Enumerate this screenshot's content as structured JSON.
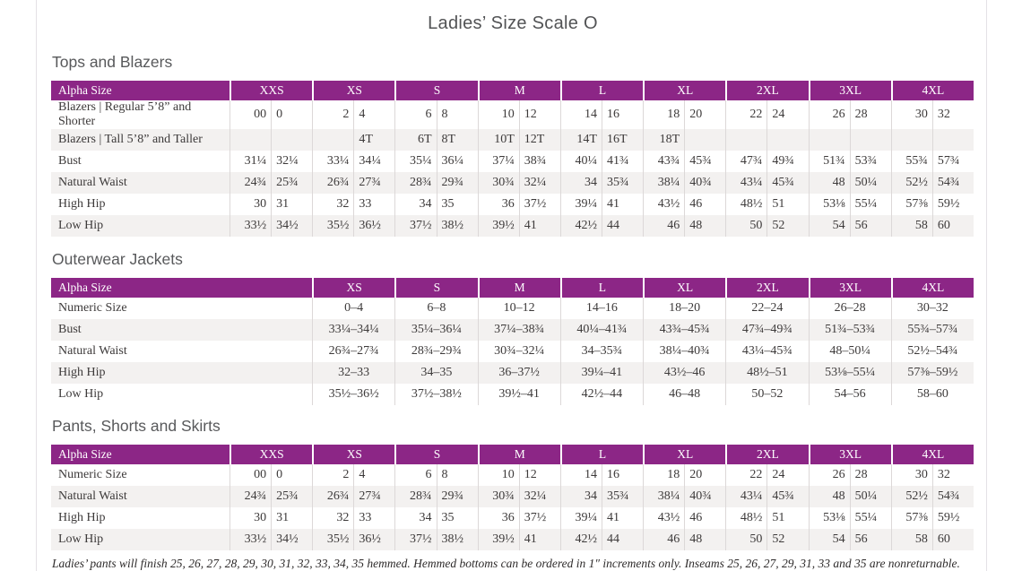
{
  "title": "Ladies’ Size Scale O",
  "footnote": "Ladies’ pants will finish 25, 26, 27, 28, 29, 30, 31, 32, 33, 34, 35 hemmed. Hemmed bottoms can be ordered in 1″ increments only. Inseams 25, 26, 27, 29, 31, 33 and 35 are nonreturnable.",
  "colors": {
    "header_purple": "#8c2686",
    "row_stripe": "#f3f1f0",
    "cell_divider": "#dcd8d8",
    "page_border": "#e4e1e6",
    "heading_gray": "#58595b",
    "body_text": "#3d3a3a"
  },
  "tables": [
    {
      "heading": "Tops and Blazers",
      "label_header": "Alpha Size",
      "layout": "paired",
      "size_groups": [
        "XXS",
        "XS",
        "S",
        "M",
        "L",
        "XL",
        "2XL",
        "3XL",
        "4XL"
      ],
      "rows": [
        {
          "label": "Blazers | Regular 5’8” and Shorter",
          "values": [
            "00",
            "0",
            "2",
            "4",
            "6",
            "8",
            "10",
            "12",
            "14",
            "16",
            "18",
            "20",
            "22",
            "24",
            "26",
            "28",
            "30",
            "32"
          ]
        },
        {
          "label": "Blazers | Tall 5’8” and Taller",
          "values": [
            "",
            "",
            "",
            "4T",
            "6T",
            "8T",
            "10T",
            "12T",
            "14T",
            "16T",
            "18T",
            "",
            "",
            "",
            "",
            "",
            "",
            ""
          ]
        },
        {
          "label": "Bust",
          "values": [
            "31¼",
            "32¼",
            "33¼",
            "34¼",
            "35¼",
            "36¼",
            "37¼",
            "38¾",
            "40¼",
            "41¾",
            "43¾",
            "45¾",
            "47¾",
            "49¾",
            "51¾",
            "53¾",
            "55¾",
            "57¾"
          ]
        },
        {
          "label": "Natural Waist",
          "values": [
            "24¾",
            "25¾",
            "26¾",
            "27¾",
            "28¾",
            "29¾",
            "30¾",
            "32¼",
            "34",
            "35¾",
            "38¼",
            "40¾",
            "43¼",
            "45¾",
            "48",
            "50¼",
            "52½",
            "54¾"
          ]
        },
        {
          "label": "High Hip",
          "values": [
            "30",
            "31",
            "32",
            "33",
            "34",
            "35",
            "36",
            "37½",
            "39¼",
            "41",
            "43½",
            "46",
            "48½",
            "51",
            "53⅛",
            "55¼",
            "57⅜",
            "59½"
          ]
        },
        {
          "label": "Low Hip",
          "values": [
            "33½",
            "34½",
            "35½",
            "36½",
            "37½",
            "38½",
            "39½",
            "41",
            "42½",
            "44",
            "46",
            "48",
            "50",
            "52",
            "54",
            "56",
            "58",
            "60"
          ]
        }
      ]
    },
    {
      "heading": "Outerwear Jackets",
      "label_header": "Alpha Size",
      "layout": "single",
      "size_groups": [
        "XS",
        "S",
        "M",
        "L",
        "XL",
        "2XL",
        "3XL",
        "4XL"
      ],
      "rows": [
        {
          "label": "Numeric Size",
          "values": [
            "0–4",
            "6–8",
            "10–12",
            "14–16",
            "18–20",
            "22–24",
            "26–28",
            "30–32"
          ]
        },
        {
          "label": "Bust",
          "values": [
            "33¼–34¼",
            "35¼–36¼",
            "37¼–38¾",
            "40¼–41¾",
            "43¾–45¾",
            "47¾–49¾",
            "51¾–53¾",
            "55¾–57¾"
          ]
        },
        {
          "label": "Natural Waist",
          "values": [
            "26¾–27¾",
            "28¾–29¾",
            "30¾–32¼",
            "34–35¾",
            "38¼–40¾",
            "43¼–45¾",
            "48–50¼",
            "52½–54¾"
          ]
        },
        {
          "label": "High Hip",
          "values": [
            "32–33",
            "34–35",
            "36–37½",
            "39¼–41",
            "43½–46",
            "48½–51",
            "53⅛–55¼",
            "57⅜–59½"
          ]
        },
        {
          "label": "Low Hip",
          "values": [
            "35½–36½",
            "37½–38½",
            "39½–41",
            "42½–44",
            "46–48",
            "50–52",
            "54–56",
            "58–60"
          ]
        }
      ]
    },
    {
      "heading": "Pants, Shorts and Skirts",
      "label_header": "Alpha Size",
      "layout": "paired",
      "size_groups": [
        "XXS",
        "XS",
        "S",
        "M",
        "L",
        "XL",
        "2XL",
        "3XL",
        "4XL"
      ],
      "rows": [
        {
          "label": "Numeric Size",
          "values": [
            "00",
            "0",
            "2",
            "4",
            "6",
            "8",
            "10",
            "12",
            "14",
            "16",
            "18",
            "20",
            "22",
            "24",
            "26",
            "28",
            "30",
            "32"
          ]
        },
        {
          "label": "Natural Waist",
          "values": [
            "24¾",
            "25¾",
            "26¾",
            "27¾",
            "28¾",
            "29¾",
            "30¾",
            "32¼",
            "34",
            "35¾",
            "38¼",
            "40¾",
            "43¼",
            "45¾",
            "48",
            "50¼",
            "52½",
            "54¾"
          ]
        },
        {
          "label": "High Hip",
          "values": [
            "30",
            "31",
            "32",
            "33",
            "34",
            "35",
            "36",
            "37½",
            "39¼",
            "41",
            "43½",
            "46",
            "48½",
            "51",
            "53⅛",
            "55¼",
            "57⅜",
            "59½"
          ]
        },
        {
          "label": "Low Hip",
          "values": [
            "33½",
            "34½",
            "35½",
            "36½",
            "37½",
            "38½",
            "39½",
            "41",
            "42½",
            "44",
            "46",
            "48",
            "50",
            "52",
            "54",
            "56",
            "58",
            "60"
          ]
        }
      ]
    }
  ]
}
